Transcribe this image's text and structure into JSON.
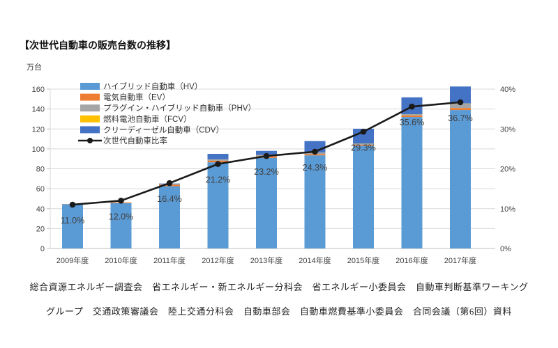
{
  "title": "【次世代自動車の販売台数の推移】",
  "y_axis_unit": "万台",
  "source": {
    "line1": "総合資源エネルギー調査会　省エネルギー・新エネルギー分科会　省エネルギー小委員会　自動車判断基準ワーキング",
    "line2": "グループ　交通政策審議会　陸上交通分科会　自動車部会　自動車燃費基準小委員会　合同会議（第6回）資料"
  },
  "chart_data": {
    "type": "bar",
    "subtype": "stacked-bar-with-line",
    "title": "次世代自動車の販売台数の推移",
    "categories": [
      "2009年度",
      "2010年度",
      "2011年度",
      "2012年度",
      "2013年度",
      "2014年度",
      "2015年度",
      "2016年度",
      "2017年度"
    ],
    "bar_series": [
      {
        "name": "ハイブリッド自動車（HV）",
        "color": "#5B9BD5",
        "values": [
          44.5,
          45.5,
          62.5,
          86.5,
          91.0,
          93.5,
          103.0,
          132.0,
          139.0
        ]
      },
      {
        "name": "電気自動車（EV）",
        "color": "#ED7D31",
        "values": [
          0.2,
          0.7,
          1.5,
          1.6,
          1.5,
          1.3,
          1.0,
          1.5,
          2.0
        ]
      },
      {
        "name": "プラグイン・ハイブリッド自動車（PHV）",
        "color": "#A5A5A5",
        "values": [
          0.0,
          0.0,
          0.7,
          1.4,
          1.5,
          1.5,
          1.0,
          1.0,
          4.5
        ]
      },
      {
        "name": "燃料電池自動車（FCV）",
        "color": "#FFC000",
        "values": [
          0.0,
          0.0,
          0.0,
          0.0,
          0.0,
          0.0,
          0.2,
          0.2,
          0.1
        ]
      },
      {
        "name": "クリーディーゼル自動車（CDV）",
        "color": "#4472C4",
        "values": [
          0.0,
          0.0,
          0.5,
          5.5,
          4.0,
          11.5,
          15.0,
          17.0,
          17.0
        ]
      }
    ],
    "line_series": {
      "name": "次世代自動車比率",
      "color": "#1a1a1a",
      "values": [
        11.0,
        12.0,
        16.4,
        21.2,
        23.2,
        24.3,
        29.3,
        35.6,
        36.7
      ],
      "labels": [
        "11.0%",
        "12.0%",
        "16.4%",
        "21.2%",
        "23.2%",
        "24.3%",
        "29.3%",
        "35.6%",
        "36.7%"
      ]
    },
    "left_axis": {
      "unit": "万台",
      "min": 0,
      "max": 160,
      "step": 20,
      "ticks": [
        "0",
        "20",
        "40",
        "60",
        "80",
        "100",
        "120",
        "140",
        "160"
      ]
    },
    "right_axis": {
      "min": 0,
      "max": 40,
      "step": 10,
      "ticks": [
        "0%",
        "10%",
        "20%",
        "30%",
        "40%"
      ]
    },
    "grid": true,
    "legend_position": "top-left-inside",
    "colors": {
      "grid": "#d9d9d9",
      "axis": "#bfbfbf",
      "tick_text": "#404040",
      "label_text": "#3f3f3f"
    }
  }
}
